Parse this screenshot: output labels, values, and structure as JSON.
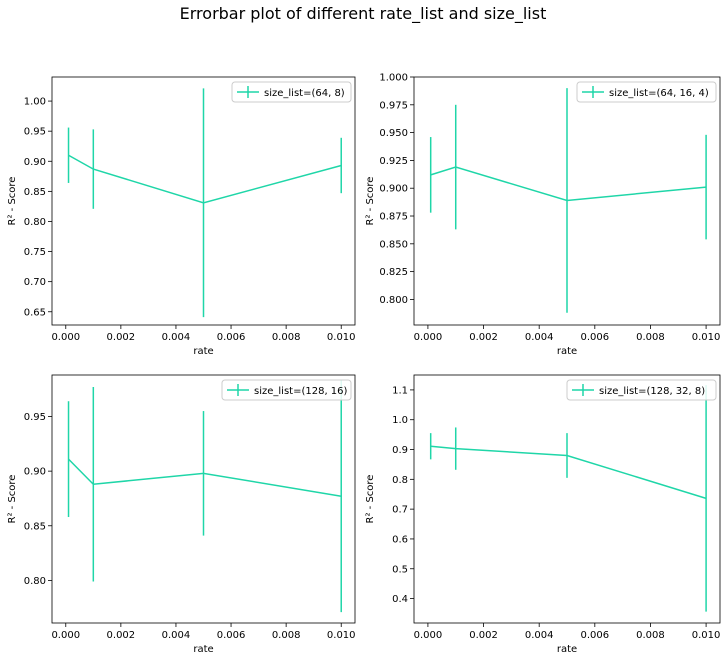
{
  "figure": {
    "title": "Errorbar plot of different rate_list and size_list",
    "line_color": "#1fd6a8"
  },
  "chart_data": [
    {
      "type": "line",
      "errorbar": true,
      "legend": "size_list=(64, 8)",
      "legend_position": "top-right",
      "xlabel": "rate",
      "ylabel": "R² - Score",
      "x": [
        0.0001,
        0.001,
        0.005,
        0.01
      ],
      "y": [
        0.91,
        0.887,
        0.831,
        0.893
      ],
      "yerr": [
        0.046,
        0.066,
        0.19,
        0.046
      ],
      "xlim": [
        -0.0005,
        0.0105
      ],
      "ylim": [
        0.628,
        1.04
      ],
      "xticks": [
        0.0,
        0.002,
        0.004,
        0.006,
        0.008,
        0.01
      ],
      "xtick_labels": [
        "0.000",
        "0.002",
        "0.004",
        "0.006",
        "0.008",
        "0.010"
      ],
      "yticks": [
        0.65,
        0.7,
        0.75,
        0.8,
        0.85,
        0.9,
        0.95,
        1.0
      ],
      "ytick_labels": [
        "0.65",
        "0.70",
        "0.75",
        "0.80",
        "0.85",
        "0.90",
        "0.95",
        "1.00"
      ]
    },
    {
      "type": "line",
      "errorbar": true,
      "legend": "size_list=(64, 16, 4)",
      "legend_position": "top-right",
      "xlabel": "rate",
      "ylabel": "R² - Score",
      "x": [
        0.0001,
        0.001,
        0.005,
        0.01
      ],
      "y": [
        0.912,
        0.919,
        0.889,
        0.901
      ],
      "yerr": [
        0.034,
        0.056,
        0.101,
        0.047
      ],
      "xlim": [
        -0.0005,
        0.0105
      ],
      "ylim": [
        0.777,
        1.0
      ],
      "xticks": [
        0.0,
        0.002,
        0.004,
        0.006,
        0.008,
        0.01
      ],
      "xtick_labels": [
        "0.000",
        "0.002",
        "0.004",
        "0.006",
        "0.008",
        "0.010"
      ],
      "yticks": [
        0.8,
        0.825,
        0.85,
        0.875,
        0.9,
        0.925,
        0.95,
        0.975,
        1.0
      ],
      "ytick_labels": [
        "0.800",
        "0.825",
        "0.850",
        "0.875",
        "0.900",
        "0.925",
        "0.950",
        "0.975",
        "1.000"
      ]
    },
    {
      "type": "line",
      "errorbar": true,
      "legend": "size_list=(128, 16)",
      "legend_position": "top-right",
      "xlabel": "rate",
      "ylabel": "R² - Score",
      "x": [
        0.0001,
        0.001,
        0.005,
        0.01
      ],
      "y": [
        0.911,
        0.888,
        0.898,
        0.877
      ],
      "yerr": [
        0.053,
        0.089,
        0.057,
        0.106
      ],
      "xlim": [
        -0.0005,
        0.0105
      ],
      "ylim": [
        0.761,
        0.988
      ],
      "xticks": [
        0.0,
        0.002,
        0.004,
        0.006,
        0.008,
        0.01
      ],
      "xtick_labels": [
        "0.000",
        "0.002",
        "0.004",
        "0.006",
        "0.008",
        "0.010"
      ],
      "yticks": [
        0.8,
        0.85,
        0.9,
        0.95
      ],
      "ytick_labels": [
        "0.80",
        "0.85",
        "0.90",
        "0.95"
      ]
    },
    {
      "type": "line",
      "errorbar": true,
      "legend": "size_list=(128, 32, 8)",
      "legend_position": "top-right",
      "xlabel": "rate",
      "ylabel": "R² - Score",
      "x": [
        0.0001,
        0.001,
        0.005,
        0.01
      ],
      "y": [
        0.911,
        0.903,
        0.88,
        0.736
      ],
      "yerr": [
        0.044,
        0.071,
        0.075,
        0.38
      ],
      "xlim": [
        -0.0005,
        0.0105
      ],
      "ylim": [
        0.318,
        1.15
      ],
      "xticks": [
        0.0,
        0.002,
        0.004,
        0.006,
        0.008,
        0.01
      ],
      "xtick_labels": [
        "0.000",
        "0.002",
        "0.004",
        "0.006",
        "0.008",
        "0.010"
      ],
      "yticks": [
        0.4,
        0.5,
        0.6,
        0.7,
        0.8,
        0.9,
        1.0,
        1.1
      ],
      "ytick_labels": [
        "0.4",
        "0.5",
        "0.6",
        "0.7",
        "0.8",
        "0.9",
        "1.0",
        "1.1"
      ]
    }
  ]
}
